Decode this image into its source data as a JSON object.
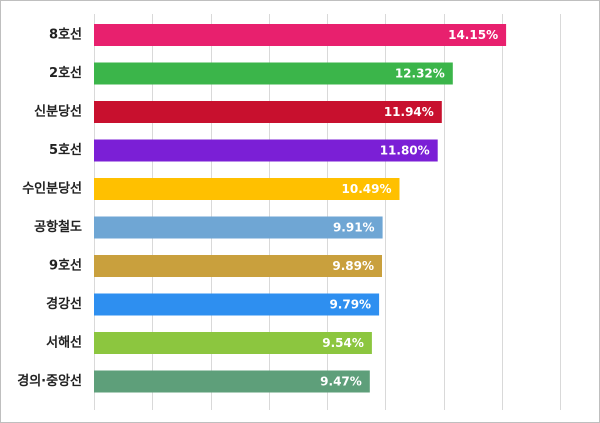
{
  "chart_data": {
    "type": "bar",
    "orientation": "horizontal",
    "title": "",
    "xlabel": "",
    "ylabel": "",
    "xlim": [
      0,
      16
    ],
    "grid": "vertical",
    "legend": "none",
    "value_suffix": "%",
    "categories": [
      "8호선",
      "2호선",
      "신분당선",
      "5호선",
      "수인분당선",
      "공항철도",
      "9호선",
      "경강선",
      "서해선",
      "경의·중앙선"
    ],
    "values": [
      14.15,
      12.32,
      11.94,
      11.8,
      10.49,
      9.91,
      9.89,
      9.79,
      9.54,
      9.47
    ],
    "colors": [
      "#e8206e",
      "#3bb54a",
      "#c8102e",
      "#7b1fd6",
      "#ffc000",
      "#6fa6d4",
      "#c9a03d",
      "#2e8ff0",
      "#8cc63f",
      "#5e9f7a"
    ]
  }
}
